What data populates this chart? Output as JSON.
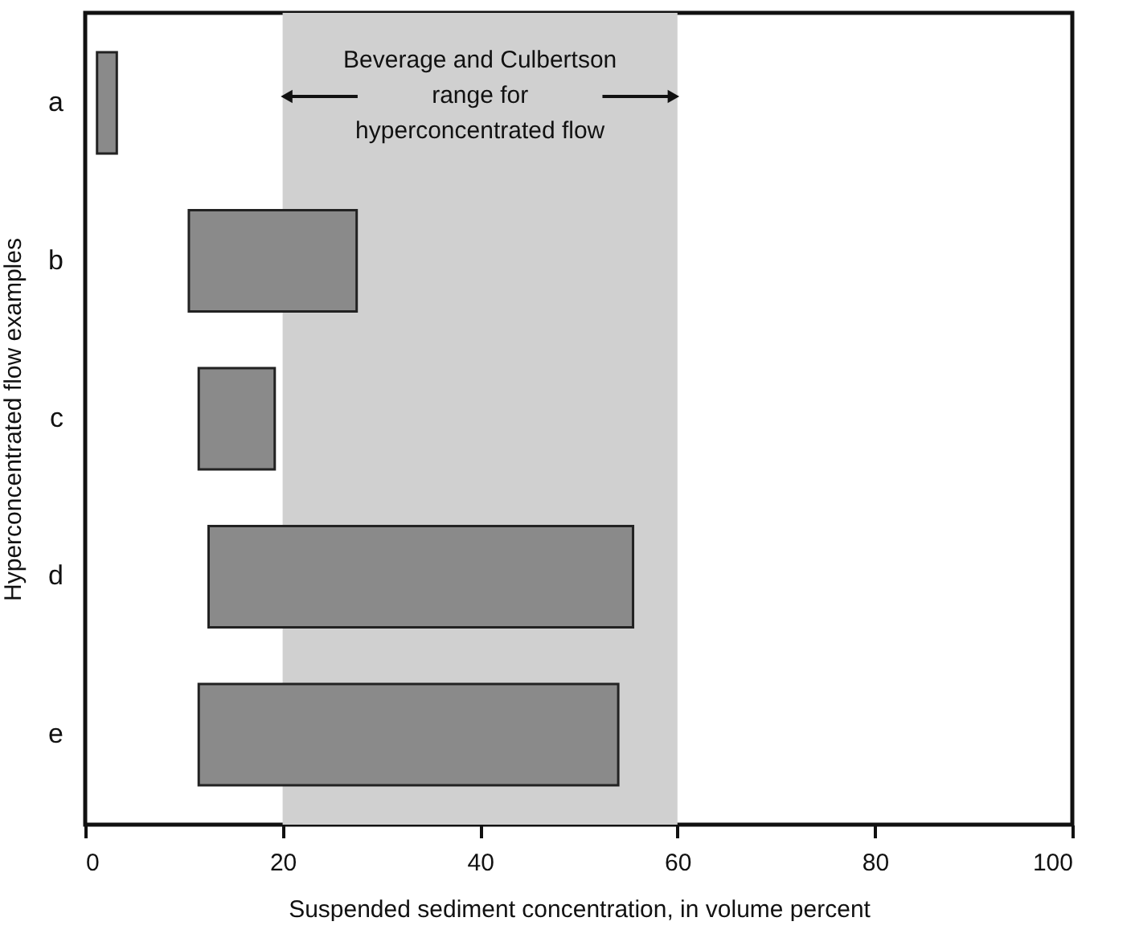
{
  "chart_data": {
    "type": "bar",
    "orientation": "horizontal",
    "xlabel": "Suspended sediment concentration, in volume percent",
    "ylabel": "Hyperconcentrated flow examples",
    "categories": [
      "a",
      "b",
      "c",
      "d",
      "e"
    ],
    "base": [
      1.2,
      10.5,
      11.5,
      12.5,
      11.5
    ],
    "values": [
      2,
      17,
      7.7,
      43,
      42.5
    ],
    "color": "#8a8a8a",
    "xlim": [
      0,
      100
    ],
    "xticks": [
      0,
      20,
      40,
      60,
      80,
      100
    ],
    "bands": [
      {
        "axis": "x",
        "from": 20,
        "to": 60,
        "label": "Beverage and Culbertson range for hyperconcentrated flow",
        "color": "#d0d0d0"
      }
    ],
    "grid": false
  }
}
